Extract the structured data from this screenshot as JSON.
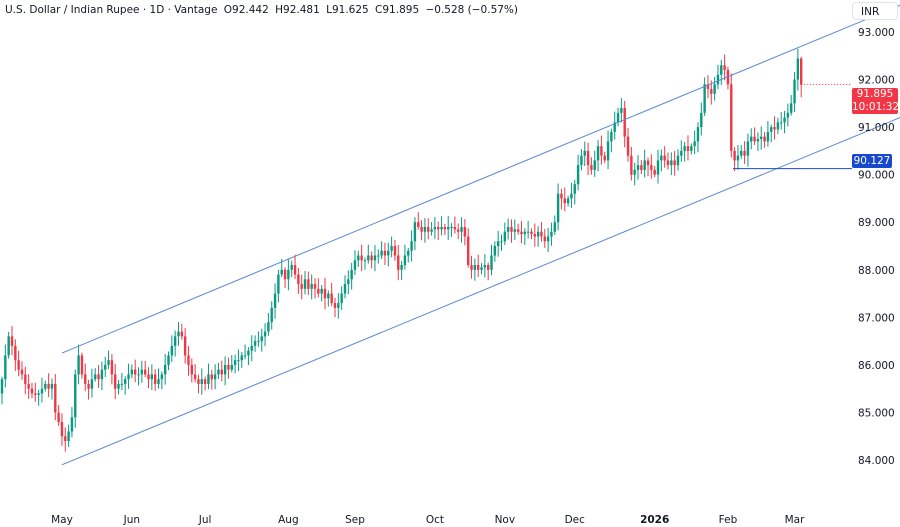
{
  "header": {
    "symbol": "U.S. Dollar / Indian Rupee · 1D · Vantage",
    "open": "O92.442",
    "high": "H92.481",
    "low": "L91.625",
    "close": "C91.895",
    "change": "−0.528 (−0.57%)"
  },
  "currency_label": "INR",
  "current_price": {
    "value": "91.895",
    "countdown": "10:01:32"
  },
  "horizontal_line_label": "90.127",
  "colors": {
    "up": "#089981",
    "down": "#f23645",
    "channel": "#5b87d4",
    "hline": "#1848cc"
  },
  "chart_data": {
    "type": "candlestick",
    "title": "U.S. Dollar / Indian Rupee · 1D",
    "ylim": [
      83.5,
      93.7
    ],
    "y_ticks": [
      "93.000",
      "92.000",
      "91.000",
      "90.000",
      "89.000",
      "88.000",
      "87.000",
      "86.000",
      "85.000",
      "84.000"
    ],
    "y_tick_values": [
      93,
      92,
      91,
      90,
      89,
      88,
      87,
      86,
      85,
      84
    ],
    "x_ticks": [
      {
        "label": "May",
        "bar": 18
      },
      {
        "label": "Jun",
        "bar": 39
      },
      {
        "label": "Jul",
        "bar": 61
      },
      {
        "label": "Aug",
        "bar": 86
      },
      {
        "label": "Sep",
        "bar": 106
      },
      {
        "label": "Oct",
        "bar": 130
      },
      {
        "label": "Nov",
        "bar": 151
      },
      {
        "label": "Dec",
        "bar": 172
      },
      {
        "label": "2026",
        "bar": 196
      },
      {
        "label": "Feb",
        "bar": 218
      },
      {
        "label": "Mar",
        "bar": 238
      }
    ],
    "first_open": 85.4,
    "closes": [
      85.7,
      86.2,
      86.6,
      86.4,
      86.1,
      85.9,
      85.8,
      85.6,
      85.5,
      85.4,
      85.37,
      85.4,
      85.5,
      85.6,
      85.5,
      85.6,
      85.0,
      84.8,
      84.5,
      84.4,
      84.6,
      84.9,
      85.8,
      86.2,
      85.8,
      85.6,
      85.5,
      85.7,
      85.8,
      85.7,
      85.9,
      86.0,
      86.1,
      85.8,
      85.5,
      85.6,
      85.6,
      85.7,
      85.8,
      85.9,
      85.8,
      85.8,
      85.9,
      85.8,
      85.7,
      85.8,
      85.6,
      85.7,
      85.8,
      86.0,
      86.2,
      86.4,
      86.6,
      86.7,
      86.6,
      86.2,
      86.0,
      85.8,
      85.7,
      85.6,
      85.7,
      85.6,
      85.8,
      85.7,
      85.8,
      85.9,
      85.8,
      86.0,
      85.9,
      86.0,
      86.1,
      86.1,
      86.2,
      86.2,
      86.3,
      86.4,
      86.5,
      86.5,
      86.6,
      86.7,
      86.9,
      87.2,
      87.5,
      87.9,
      88.0,
      87.8,
      88.0,
      88.1,
      87.9,
      87.7,
      87.6,
      87.8,
      87.6,
      87.7,
      87.6,
      87.5,
      87.6,
      87.4,
      87.5,
      87.3,
      87.2,
      87.3,
      87.5,
      87.7,
      87.8,
      88.0,
      88.2,
      88.3,
      88.2,
      88.2,
      88.3,
      88.2,
      88.3,
      88.3,
      88.4,
      88.3,
      88.4,
      88.5,
      88.3,
      88.0,
      88.1,
      88.3,
      88.4,
      88.6,
      89.0,
      88.9,
      88.8,
      88.9,
      88.8,
      88.85,
      88.9,
      88.85,
      88.9,
      88.85,
      88.9,
      88.9,
      88.85,
      88.8,
      88.9,
      88.7,
      88.1,
      88.0,
      88.1,
      88.0,
      88.05,
      88.1,
      88.0,
      88.3,
      88.5,
      88.6,
      88.6,
      88.8,
      88.9,
      88.8,
      88.85,
      88.8,
      88.75,
      88.8,
      88.8,
      88.75,
      88.7,
      88.8,
      88.7,
      88.6,
      88.7,
      88.8,
      89.0,
      89.6,
      89.5,
      89.4,
      89.5,
      89.6,
      89.8,
      90.2,
      90.4,
      90.5,
      90.2,
      90.1,
      90.3,
      90.6,
      90.4,
      90.3,
      90.7,
      90.9,
      91.1,
      91.3,
      91.4,
      90.8,
      90.4,
      90.0,
      90.1,
      90.2,
      90.1,
      90.3,
      90.2,
      90.1,
      90.0,
      90.3,
      90.4,
      90.3,
      90.2,
      90.3,
      90.2,
      90.4,
      90.5,
      90.6,
      90.5,
      90.6,
      90.7,
      91.0,
      91.3,
      91.9,
      91.8,
      91.7,
      91.9,
      92.1,
      92.3,
      92.2,
      91.9,
      90.5,
      90.3,
      90.4,
      90.5,
      90.4,
      90.7,
      90.8,
      90.7,
      90.75,
      90.8,
      90.7,
      90.9,
      91.0,
      90.95,
      91.1,
      91.1,
      91.2,
      91.3,
      91.5,
      92.0,
      92.442
    ],
    "last_candle": {
      "open": 92.442,
      "high": 92.481,
      "low": 91.625,
      "close": 91.895
    },
    "channel": {
      "upper": [
        [
          18,
          86.25
        ],
        [
          270,
          93.57
        ]
      ],
      "lower": [
        [
          18,
          83.9
        ],
        [
          270,
          91.21
        ]
      ]
    },
    "horizontal_line": {
      "from_bar": 219.5,
      "price": 90.127
    }
  }
}
